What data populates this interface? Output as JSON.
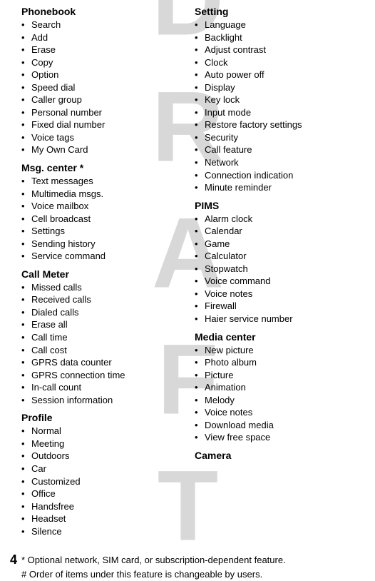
{
  "watermark": "DRAFT",
  "left_column": [
    {
      "title": "Phonebook",
      "items": [
        "Search",
        "Add",
        "Erase",
        "Copy",
        "Option",
        "Speed dial",
        "Caller group",
        "Personal number",
        "Fixed dial number",
        "Voice tags",
        "My Own Card"
      ]
    },
    {
      "title": "Msg. center *",
      "items": [
        "Text messages",
        "Multimedia msgs.",
        "Voice mailbox",
        "Cell broadcast",
        "Settings",
        "Sending history",
        "Service command"
      ]
    },
    {
      "title": "Call Meter",
      "items": [
        "Missed calls",
        "Received calls",
        "Dialed calls",
        "Erase all",
        "Call time",
        "Call cost",
        "GPRS data counter",
        "GPRS connection time",
        "In-call count",
        "Session information"
      ]
    },
    {
      "title": "Profile",
      "items": [
        "Normal",
        "Meeting",
        "Outdoors",
        "Car",
        "Customized",
        "Office",
        "Handsfree",
        "Headset",
        "Silence"
      ]
    }
  ],
  "right_column": [
    {
      "title": "Setting",
      "items": [
        "Language",
        "Backlight",
        "Adjust contrast",
        "Clock",
        "Auto power off",
        "Display",
        "Key lock",
        "Input mode",
        "Restore factory settings",
        "Security",
        "Call feature",
        "Network",
        "Connection indication",
        "Minute reminder"
      ]
    },
    {
      "title": "PIMS",
      "items": [
        "Alarm clock",
        "Calendar",
        "Game",
        "Calculator",
        "Stopwatch",
        "Voice command",
        "Voice notes",
        "Firewall",
        "Haier service number"
      ]
    },
    {
      "title": "Media center",
      "items": [
        "New picture",
        "Photo album",
        "Picture",
        "Animation",
        "Melody",
        "Voice notes",
        "Download media",
        "View free space"
      ]
    },
    {
      "title": "Camera",
      "items": []
    }
  ],
  "footnotes": [
    "* Optional network, SIM card, or subscription-dependent feature.",
    "# Order of items under this feature is changeable by users."
  ],
  "page_number": "4"
}
